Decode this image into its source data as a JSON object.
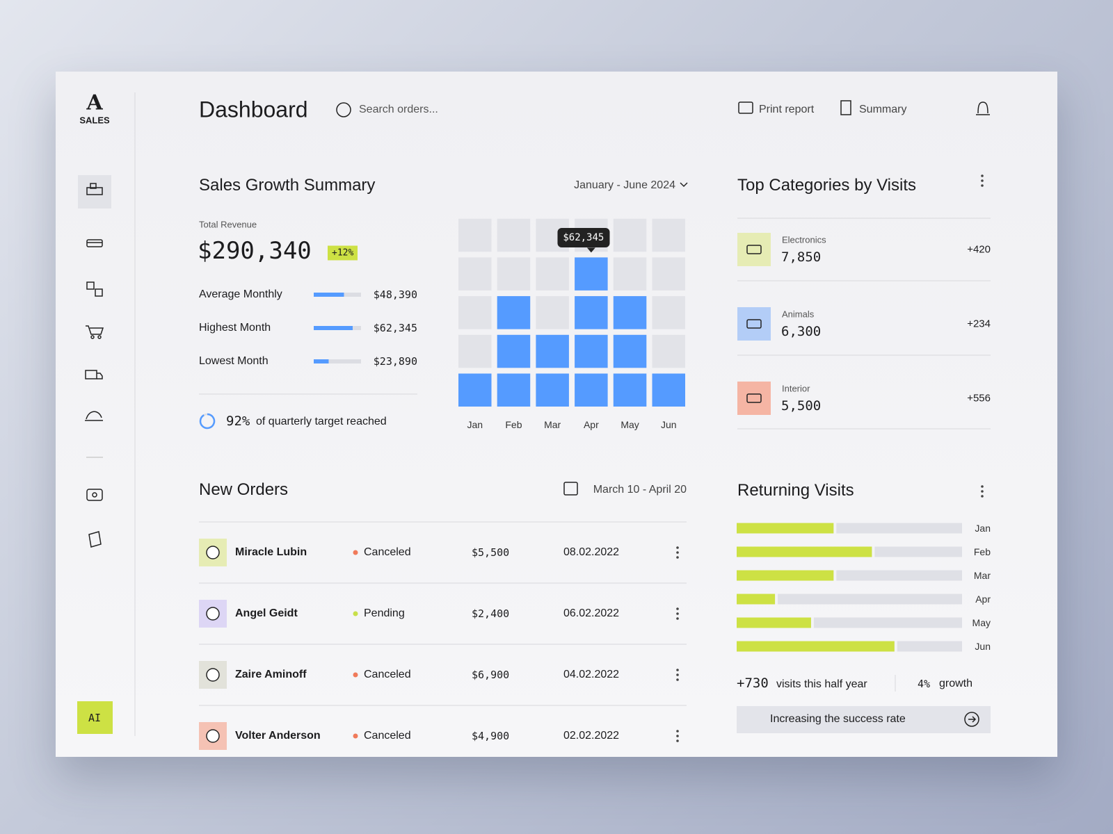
{
  "sidebar": {
    "logo": "A",
    "brand": "SALES",
    "ai": "AI"
  },
  "header": {
    "title": "Dashboard",
    "search": "Search orders...",
    "print": "Print report",
    "summary": "Summary"
  },
  "sales_growth": {
    "title": "Sales Growth Summary",
    "period": "January - June 2024",
    "total_label": "Total Revenue",
    "total": "$290,340",
    "change": "+12%",
    "stats": {
      "labels": [
        "Average Monthly",
        "Highest Month",
        "Lowest Month"
      ],
      "values": [
        48390,
        62345,
        23890
      ],
      "value_labels": [
        "$48,390",
        "$62,345",
        "$23,890"
      ],
      "color": "#559bff"
    },
    "target": {
      "value": 92,
      "label": "92%",
      "text": "of quarterly target reached",
      "color": "#559bff"
    },
    "chart": {
      "type": "bar",
      "categories": [
        "Jan",
        "Feb",
        "Mar",
        "Apr",
        "May",
        "Jun"
      ],
      "values": [
        1,
        3,
        2,
        4,
        3,
        1
      ],
      "ylim": [
        0,
        5
      ],
      "color": "#559bff",
      "tooltip": {
        "category": "Apr",
        "label": "$62,345"
      }
    }
  },
  "top_categories": {
    "title": "Top Categories by Visits",
    "items": [
      {
        "name": "Electronics",
        "value": "7,850",
        "delta": "+420",
        "color": "#e6ecb4"
      },
      {
        "name": "Animals",
        "value": "6,300",
        "delta": "+234",
        "color": "#b3cdf7"
      },
      {
        "name": "Interior",
        "value": "5,500",
        "delta": "+556",
        "color": "#f5b5a4"
      }
    ]
  },
  "orders": {
    "title": "New Orders",
    "range": "March 10 - April 20",
    "rows": [
      {
        "name": "Miracle Lubin",
        "status": "Canceled",
        "amount": "$5,500",
        "date": "08.02.2022",
        "status_color": "#f07a5a",
        "avatar_color": "#e6ecb4"
      },
      {
        "name": "Angel Geidt",
        "status": "Pending",
        "amount": "$2,400",
        "date": "06.02.2022",
        "status_color": "#c8e04a",
        "avatar_color": "#ddd6f5"
      },
      {
        "name": "Zaire Aminoff",
        "status": "Canceled",
        "amount": "$6,900",
        "date": "04.02.2022",
        "status_color": "#f07a5a",
        "avatar_color": "#e2e2da"
      },
      {
        "name": "Volter Anderson",
        "status": "Canceled",
        "amount": "$4,900",
        "date": "02.02.2022",
        "status_color": "#f07a5a",
        "avatar_color": "#f5c2b4"
      }
    ]
  },
  "returning": {
    "title": "Returning Visits",
    "chart": {
      "type": "bar",
      "categories": [
        "Jan",
        "Feb",
        "Mar",
        "Apr",
        "May",
        "Jun"
      ],
      "values": [
        43,
        60,
        43,
        17,
        33,
        70
      ],
      "xlim": [
        0,
        100
      ],
      "color": "#cde144"
    },
    "visits": "+730",
    "visits_text": "visits this half year",
    "growth": "4%",
    "growth_text": "growth",
    "action": "Increasing the success rate"
  }
}
